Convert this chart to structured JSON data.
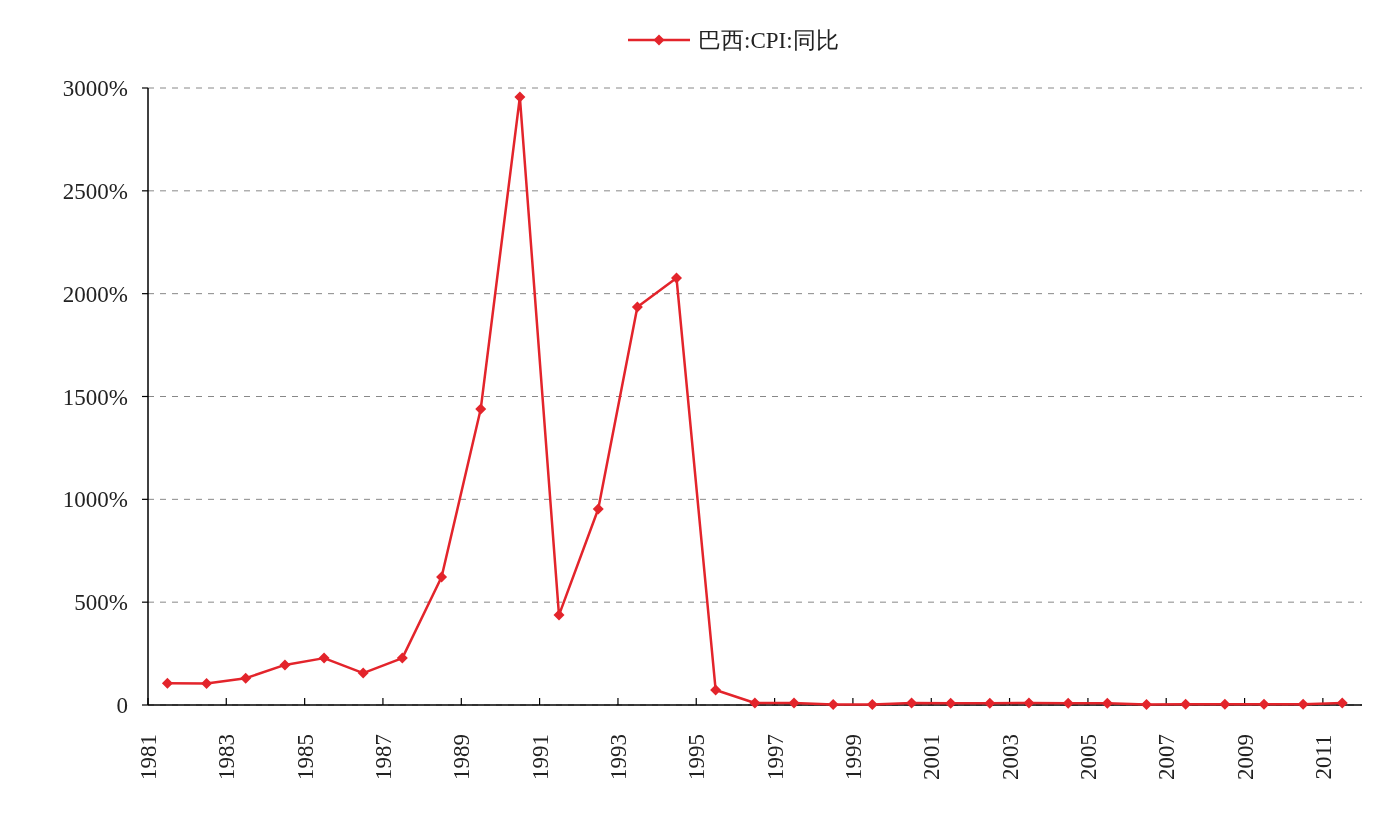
{
  "chart_data": {
    "type": "line",
    "x": [
      "1981-07",
      "1982-07",
      "1983-07",
      "1984-07",
      "1985-07",
      "1986-07",
      "1987-07",
      "1988-07",
      "1989-07",
      "1990-07",
      "1991-07",
      "1992-07",
      "1993-07",
      "1994-07",
      "1995-07",
      "1996-07",
      "1997-07",
      "1998-07",
      "1999-07",
      "2000-07",
      "2001-07",
      "2002-07",
      "2003-07",
      "2004-07",
      "2005-07",
      "2006-07",
      "2007-07",
      "2008-07",
      "2009-07",
      "2010-07",
      "2011-07"
    ],
    "series": [
      {
        "name": "巴西:CPI:同比",
        "color": "#e3242b",
        "values": [
          106,
          105,
          130,
          195,
          228,
          155,
          228,
          622,
          1439,
          2956,
          437,
          953,
          1935,
          2076,
          73,
          10,
          10,
          2,
          2,
          10,
          8,
          9,
          10,
          8,
          8,
          3,
          4,
          4,
          4,
          4,
          10
        ]
      }
    ],
    "xlim": [
      "1981",
      "2012"
    ],
    "xticks": [
      "1981",
      "1983",
      "1985",
      "1987",
      "1989",
      "1991",
      "1993",
      "1995",
      "1997",
      "1999",
      "2001",
      "2003",
      "2005",
      "2007",
      "2009",
      "2011"
    ],
    "ylim": [
      0,
      3000
    ],
    "yticks": [
      0,
      {
        "value": 500,
        "label": "500%"
      },
      {
        "value": 1000,
        "label": "1000%"
      },
      {
        "value": 1500,
        "label": "1500%"
      },
      {
        "value": 2000,
        "label": "2000%"
      },
      {
        "value": 2500,
        "label": "2500%"
      },
      {
        "value": 3000,
        "label": "3000%"
      }
    ],
    "grid": "y",
    "legend": "top",
    "marker": "diamond",
    "line_style": "solid"
  }
}
